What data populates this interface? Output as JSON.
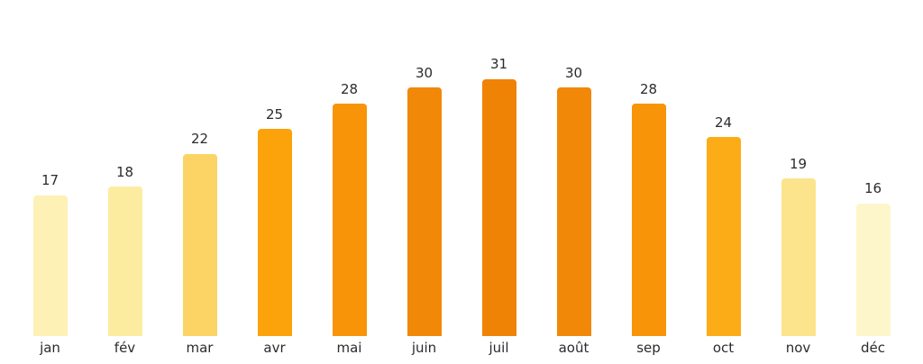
{
  "chart_data": {
    "type": "bar",
    "title": "",
    "xlabel": "",
    "ylabel": "",
    "categories": [
      "jan",
      "fév",
      "mar",
      "avr",
      "mai",
      "juin",
      "juil",
      "août",
      "sep",
      "oct",
      "nov",
      "déc"
    ],
    "values": [
      17,
      18,
      22,
      25,
      28,
      30,
      31,
      30,
      28,
      24,
      19,
      16
    ],
    "data_labels": [
      "17",
      "18",
      "22",
      "25",
      "28",
      "30",
      "31",
      "30",
      "28",
      "24",
      "19",
      "16"
    ],
    "bar_colors": [
      "#FDF1B5",
      "#FCECA0",
      "#FBD465",
      "#FCA20A",
      "#F89408",
      "#F18807",
      "#EF8306",
      "#F18807",
      "#F89408",
      "#FCAC17",
      "#FBE48C",
      "#FDF6CB"
    ],
    "ylim": [
      0,
      33
    ],
    "grid": false,
    "legend": false,
    "axes_visible": false,
    "background_color": "#ffffff",
    "value_label_color": "#2b2b2b",
    "axis_label_color": "#2b2b2b",
    "color_scale_note": "bar color encodes value: pale cream (16) to deep orange (31)"
  }
}
